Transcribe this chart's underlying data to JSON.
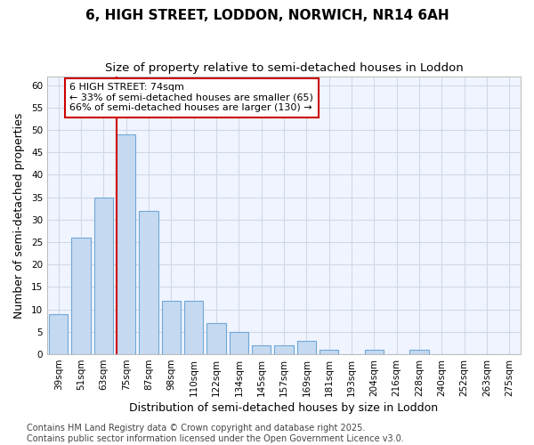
{
  "title": "6, HIGH STREET, LODDON, NORWICH, NR14 6AH",
  "subtitle": "Size of property relative to semi-detached houses in Loddon",
  "xlabel": "Distribution of semi-detached houses by size in Loddon",
  "ylabel": "Number of semi-detached properties",
  "categories": [
    "39sqm",
    "51sqm",
    "63sqm",
    "75sqm",
    "87sqm",
    "98sqm",
    "110sqm",
    "122sqm",
    "134sqm",
    "145sqm",
    "157sqm",
    "169sqm",
    "181sqm",
    "193sqm",
    "204sqm",
    "216sqm",
    "228sqm",
    "240sqm",
    "252sqm",
    "263sqm",
    "275sqm"
  ],
  "values": [
    9,
    26,
    35,
    49,
    32,
    12,
    12,
    7,
    5,
    2,
    2,
    3,
    1,
    0,
    1,
    0,
    1,
    0,
    0,
    0,
    0
  ],
  "bar_color": "#c5d9f0",
  "bar_edge_color": "#6fa8d8",
  "vline_color": "#cc0000",
  "annotation_text": "6 HIGH STREET: 74sqm\n← 33% of semi-detached houses are smaller (65)\n66% of semi-detached houses are larger (130) →",
  "annotation_box_color": "#ffffff",
  "annotation_box_edge_color": "#cc0000",
  "ylim": [
    0,
    62
  ],
  "yticks": [
    0,
    5,
    10,
    15,
    20,
    25,
    30,
    35,
    40,
    45,
    50,
    55,
    60
  ],
  "background_color": "#ffffff",
  "plot_bg_color": "#f0f4ff",
  "grid_color": "#d0d8e8",
  "footer_text": "Contains HM Land Registry data © Crown copyright and database right 2025.\nContains public sector information licensed under the Open Government Licence v3.0.",
  "title_fontsize": 11,
  "subtitle_fontsize": 9.5,
  "axis_label_fontsize": 9,
  "tick_fontsize": 7.5,
  "footer_fontsize": 7,
  "annotation_fontsize": 8
}
